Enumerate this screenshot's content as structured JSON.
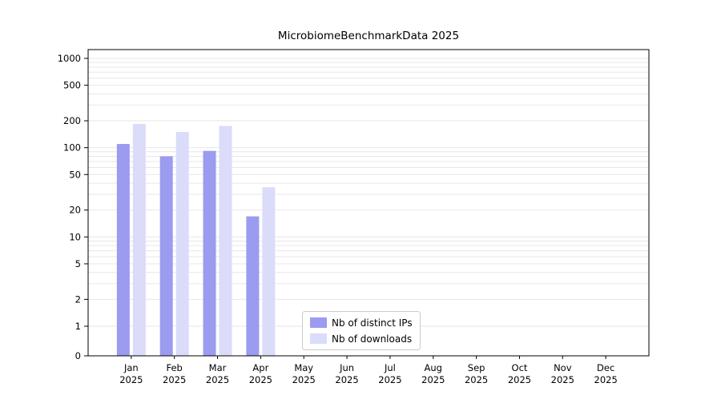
{
  "title": "MicrobiomeBenchmarkData 2025",
  "chart_data": {
    "type": "bar",
    "title": "MicrobiomeBenchmarkData 2025",
    "categories": [
      "Jan",
      "Feb",
      "Mar",
      "Apr",
      "May",
      "Jun",
      "Jul",
      "Aug",
      "Sep",
      "Oct",
      "Nov",
      "Dec"
    ],
    "year_label": "2025",
    "series": [
      {
        "name": "Nb of distinct IPs",
        "color": "#9b9bef",
        "values": [
          110,
          80,
          92,
          17,
          0,
          0,
          0,
          0,
          0,
          0,
          0,
          0
        ]
      },
      {
        "name": "Nb of downloads",
        "color": "#dbdbfa",
        "values": [
          185,
          150,
          175,
          36,
          0,
          0,
          0,
          0,
          0,
          0,
          0,
          0
        ]
      }
    ],
    "yscale": "symlog",
    "yticks": [
      0,
      1,
      2,
      5,
      10,
      20,
      50,
      100,
      200,
      500,
      1000
    ],
    "ylim": [
      0,
      1300
    ],
    "xlabel": "",
    "ylabel": "",
    "grid": "horizontal-minor-log",
    "legend_position": "lower-center-inside"
  }
}
